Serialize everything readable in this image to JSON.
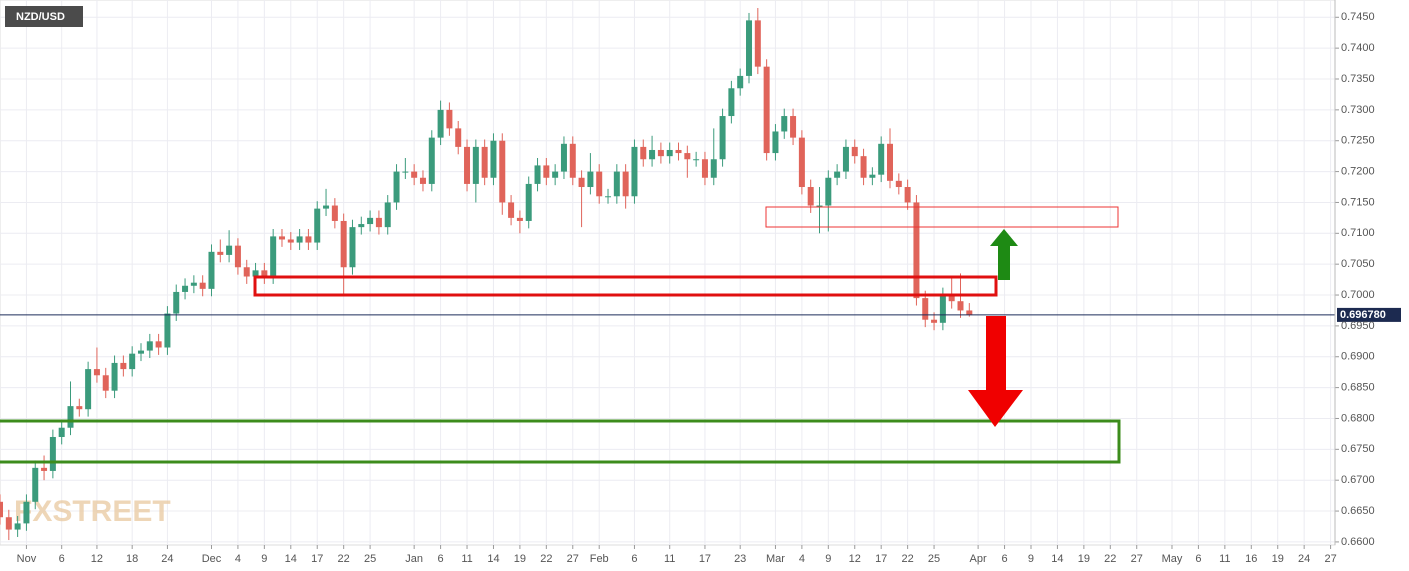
{
  "chart_data": {
    "type": "candlestick",
    "title": "NZD/USD",
    "watermark": "FXSTREET",
    "x": [
      -3,
      -2,
      -1,
      0,
      1,
      2,
      3,
      4,
      5,
      6,
      7,
      8,
      9,
      10,
      11,
      12,
      13,
      14,
      15,
      16,
      17,
      18,
      19,
      20,
      21,
      22,
      23,
      24,
      25,
      26,
      27,
      28,
      29,
      30,
      31,
      32,
      33,
      34,
      35,
      36,
      37,
      38,
      39,
      40,
      41,
      42,
      43,
      44,
      45,
      46,
      47,
      48,
      49,
      50,
      51,
      52,
      53,
      54,
      55,
      56,
      57,
      58,
      59,
      60,
      61,
      62,
      63,
      64,
      65,
      66,
      67,
      68,
      69,
      70,
      71,
      72,
      73,
      74,
      75,
      76,
      77,
      78,
      79,
      80,
      81,
      82,
      83,
      84,
      85,
      86,
      87,
      88,
      89,
      90,
      91,
      92,
      93,
      94,
      95,
      96,
      97,
      98,
      99,
      100,
      101,
      102,
      103,
      104,
      105,
      106,
      107
    ],
    "open": [
      0.6665,
      0.664,
      0.662,
      0.663,
      0.6665,
      0.672,
      0.6715,
      0.677,
      0.6785,
      0.682,
      0.6815,
      0.688,
      0.687,
      0.6845,
      0.689,
      0.688,
      0.6905,
      0.691,
      0.6925,
      0.6915,
      0.697,
      0.7005,
      0.7015,
      0.702,
      0.701,
      0.707,
      0.7065,
      0.708,
      0.7045,
      0.703,
      0.704,
      0.703,
      0.7095,
      0.709,
      0.7085,
      0.7095,
      0.7085,
      0.714,
      0.7145,
      0.712,
      0.7045,
      0.711,
      0.7115,
      0.7125,
      0.711,
      0.715,
      0.72,
      0.72,
      0.719,
      0.718,
      0.7255,
      0.73,
      0.727,
      0.724,
      0.718,
      0.724,
      0.719,
      0.725,
      0.715,
      0.7125,
      0.712,
      0.718,
      0.721,
      0.719,
      0.72,
      0.7245,
      0.719,
      0.7175,
      0.72,
      0.716,
      0.716,
      0.72,
      0.716,
      0.724,
      0.722,
      0.7235,
      0.7225,
      0.7235,
      0.723,
      0.722,
      0.722,
      0.719,
      0.722,
      0.729,
      0.7335,
      0.7355,
      0.7445,
      0.737,
      0.723,
      0.7265,
      0.729,
      0.7255,
      0.7175,
      0.7145,
      0.7145,
      0.719,
      0.72,
      0.724,
      0.7225,
      0.719,
      0.7195,
      0.7245,
      0.7185,
      0.7175,
      0.715,
      0.6995,
      0.696,
      0.6955,
      0.7,
      0.699,
      0.6975
    ],
    "high": [
      0.6677,
      0.6652,
      0.6642,
      0.6677,
      0.6732,
      0.674,
      0.6782,
      0.6797,
      0.686,
      0.6832,
      0.6892,
      0.6915,
      0.6882,
      0.6902,
      0.6902,
      0.6917,
      0.6922,
      0.6937,
      0.6937,
      0.6982,
      0.7017,
      0.7027,
      0.7032,
      0.7032,
      0.7082,
      0.709,
      0.7105,
      0.7092,
      0.7057,
      0.7052,
      0.7052,
      0.7107,
      0.7107,
      0.7102,
      0.7107,
      0.7107,
      0.7152,
      0.7172,
      0.7157,
      0.7132,
      0.7122,
      0.7127,
      0.7137,
      0.7137,
      0.7162,
      0.7212,
      0.7222,
      0.7212,
      0.7202,
      0.7267,
      0.7315,
      0.7312,
      0.7282,
      0.7252,
      0.7252,
      0.7252,
      0.7262,
      0.7262,
      0.7162,
      0.7137,
      0.7192,
      0.7222,
      0.7222,
      0.7212,
      0.7257,
      0.7257,
      0.7202,
      0.723,
      0.7212,
      0.7172,
      0.7212,
      0.7212,
      0.7252,
      0.7252,
      0.7258,
      0.7247,
      0.7247,
      0.7247,
      0.7242,
      0.7232,
      0.7232,
      0.727,
      0.7302,
      0.7347,
      0.7367,
      0.7457,
      0.7465,
      0.7382,
      0.7277,
      0.7302,
      0.7302,
      0.7267,
      0.7187,
      0.7175,
      0.7202,
      0.7212,
      0.7252,
      0.7252,
      0.7237,
      0.7207,
      0.7257,
      0.727,
      0.7197,
      0.7187,
      0.7162,
      0.7007,
      0.6972,
      0.7012,
      0.703,
      0.7035,
      0.6987
    ],
    "low": [
      0.6628,
      0.6603,
      0.6608,
      0.6618,
      0.6653,
      0.67,
      0.6703,
      0.6758,
      0.6773,
      0.6803,
      0.6803,
      0.6858,
      0.6833,
      0.6833,
      0.6868,
      0.6868,
      0.6893,
      0.6898,
      0.6903,
      0.6903,
      0.6958,
      0.6993,
      0.7003,
      0.6998,
      0.6998,
      0.7053,
      0.7053,
      0.7033,
      0.7018,
      0.7003,
      0.7018,
      0.7018,
      0.7078,
      0.7073,
      0.7073,
      0.7073,
      0.7073,
      0.7128,
      0.7108,
      0.7,
      0.7033,
      0.7098,
      0.7103,
      0.7098,
      0.7098,
      0.7138,
      0.7188,
      0.7178,
      0.7168,
      0.7168,
      0.7243,
      0.7258,
      0.7228,
      0.7168,
      0.715,
      0.7178,
      0.7178,
      0.713,
      0.7113,
      0.71,
      0.7108,
      0.7168,
      0.7178,
      0.7178,
      0.7188,
      0.7178,
      0.711,
      0.7163,
      0.7148,
      0.7148,
      0.7148,
      0.714,
      0.7148,
      0.7208,
      0.7208,
      0.7213,
      0.7213,
      0.7218,
      0.719,
      0.7208,
      0.7178,
      0.7178,
      0.7208,
      0.7278,
      0.7323,
      0.7343,
      0.7358,
      0.7218,
      0.7218,
      0.7253,
      0.7243,
      0.7163,
      0.7133,
      0.71,
      0.7103,
      0.7178,
      0.7188,
      0.7213,
      0.7178,
      0.7178,
      0.7183,
      0.7173,
      0.7163,
      0.7138,
      0.6983,
      0.6948,
      0.6943,
      0.6943,
      0.6978,
      0.6963,
      0.6965
    ],
    "close": [
      0.664,
      0.662,
      0.663,
      0.6665,
      0.672,
      0.6715,
      0.677,
      0.6785,
      0.682,
      0.6815,
      0.688,
      0.687,
      0.6845,
      0.689,
      0.688,
      0.6905,
      0.691,
      0.6925,
      0.6915,
      0.697,
      0.7005,
      0.7015,
      0.702,
      0.701,
      0.707,
      0.7065,
      0.708,
      0.7045,
      0.703,
      0.704,
      0.703,
      0.7095,
      0.709,
      0.7085,
      0.7095,
      0.7085,
      0.714,
      0.7145,
      0.712,
      0.7045,
      0.711,
      0.7115,
      0.7125,
      0.711,
      0.715,
      0.72,
      0.72,
      0.719,
      0.718,
      0.7255,
      0.73,
      0.727,
      0.724,
      0.718,
      0.724,
      0.719,
      0.725,
      0.715,
      0.7125,
      0.712,
      0.718,
      0.721,
      0.719,
      0.72,
      0.7245,
      0.719,
      0.7175,
      0.72,
      0.716,
      0.716,
      0.72,
      0.716,
      0.724,
      0.722,
      0.7235,
      0.7225,
      0.7235,
      0.723,
      0.722,
      0.722,
      0.719,
      0.722,
      0.729,
      0.7335,
      0.7355,
      0.7445,
      0.737,
      0.723,
      0.7265,
      0.729,
      0.7255,
      0.7175,
      0.7145,
      0.7145,
      0.719,
      0.72,
      0.724,
      0.7225,
      0.719,
      0.7195,
      0.7245,
      0.7185,
      0.7175,
      0.715,
      0.6995,
      0.696,
      0.6955,
      0.7,
      0.699,
      0.6975,
      0.6968
    ],
    "up_color": "#3b9b7c",
    "down_color": "#e0645a",
    "current_price": {
      "value": 0.69678,
      "label": "0.696780"
    },
    "xlim": [
      -3,
      148.5
    ],
    "ylim": [
      0.6595,
      0.7478
    ],
    "grid": true,
    "xticks": [
      {
        "value": 0,
        "label": "Nov"
      },
      {
        "value": 4,
        "label": "6"
      },
      {
        "value": 8,
        "label": "12"
      },
      {
        "value": 12,
        "label": "18"
      },
      {
        "value": 16,
        "label": "24"
      },
      {
        "value": 21,
        "label": "Dec"
      },
      {
        "value": 24,
        "label": "4"
      },
      {
        "value": 27,
        "label": "9"
      },
      {
        "value": 30,
        "label": "14"
      },
      {
        "value": 33,
        "label": "17"
      },
      {
        "value": 36,
        "label": "22"
      },
      {
        "value": 39,
        "label": "25"
      },
      {
        "value": 44,
        "label": "Jan"
      },
      {
        "value": 47,
        "label": "6"
      },
      {
        "value": 50,
        "label": "11"
      },
      {
        "value": 53,
        "label": "14"
      },
      {
        "value": 56,
        "label": "19"
      },
      {
        "value": 59,
        "label": "22"
      },
      {
        "value": 62,
        "label": "27"
      },
      {
        "value": 65,
        "label": "Feb"
      },
      {
        "value": 69,
        "label": "6"
      },
      {
        "value": 73,
        "label": "11"
      },
      {
        "value": 77,
        "label": "17"
      },
      {
        "value": 81,
        "label": "23"
      },
      {
        "value": 85,
        "label": "Mar"
      },
      {
        "value": 88,
        "label": "4"
      },
      {
        "value": 91,
        "label": "9"
      },
      {
        "value": 94,
        "label": "12"
      },
      {
        "value": 97,
        "label": "17"
      },
      {
        "value": 100,
        "label": "22"
      },
      {
        "value": 103,
        "label": "25"
      },
      {
        "value": 108,
        "label": "Apr"
      },
      {
        "value": 111,
        "label": "6"
      },
      {
        "value": 114,
        "label": "9"
      },
      {
        "value": 117,
        "label": "14"
      },
      {
        "value": 120,
        "label": "19"
      },
      {
        "value": 123,
        "label": "22"
      },
      {
        "value": 126,
        "label": "27"
      },
      {
        "value": 130,
        "label": "May"
      },
      {
        "value": 133,
        "label": "6"
      },
      {
        "value": 136,
        "label": "11"
      },
      {
        "value": 139,
        "label": "16"
      },
      {
        "value": 142,
        "label": "19"
      },
      {
        "value": 145,
        "label": "24"
      },
      {
        "value": 148,
        "label": "27"
      }
    ],
    "yticks": [
      {
        "value": 0.66,
        "label": "0.6600"
      },
      {
        "value": 0.665,
        "label": "0.6650"
      },
      {
        "value": 0.67,
        "label": "0.6700"
      },
      {
        "value": 0.675,
        "label": "0.6750"
      },
      {
        "value": 0.68,
        "label": "0.6800"
      },
      {
        "value": 0.685,
        "label": "0.6850"
      },
      {
        "value": 0.69,
        "label": "0.6900"
      },
      {
        "value": 0.695,
        "label": "0.6950"
      },
      {
        "value": 0.7,
        "label": "0.7000"
      },
      {
        "value": 0.705,
        "label": "0.7050"
      },
      {
        "value": 0.71,
        "label": "0.7100"
      },
      {
        "value": 0.715,
        "label": "0.7150"
      },
      {
        "value": 0.72,
        "label": "0.7200"
      },
      {
        "value": 0.725,
        "label": "0.7250"
      },
      {
        "value": 0.73,
        "label": "0.7300"
      },
      {
        "value": 0.735,
        "label": "0.7350"
      },
      {
        "value": 0.74,
        "label": "0.7400"
      },
      {
        "value": 0.745,
        "label": "0.7450"
      }
    ]
  }
}
